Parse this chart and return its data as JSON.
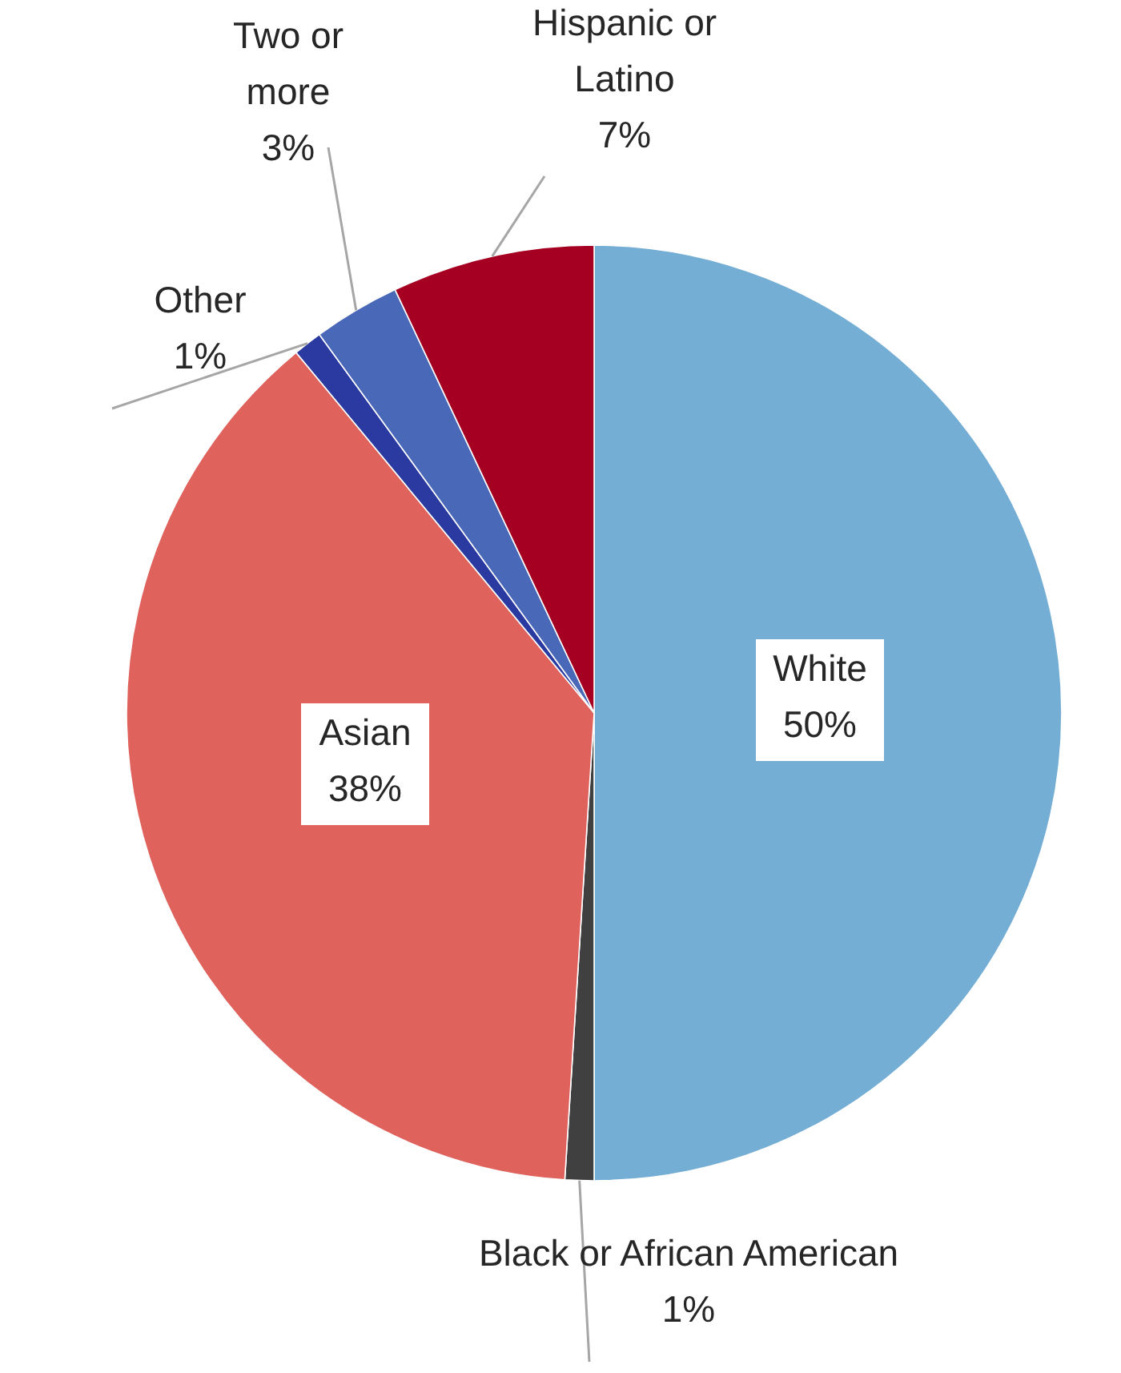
{
  "chart_data": {
    "type": "pie",
    "categories": [
      "White",
      "Black or African American",
      "Asian",
      "Other",
      "Two or more",
      "Hispanic or Latino"
    ],
    "values": [
      50,
      1,
      38,
      1,
      3,
      7
    ],
    "value_labels": [
      "50%",
      "1%",
      "38%",
      "1%",
      "3%",
      "7%"
    ],
    "colors": [
      "#74aed4",
      "#404040",
      "#e0625c",
      "#2a3aa0",
      "#4a68b8",
      "#a50021"
    ]
  }
}
